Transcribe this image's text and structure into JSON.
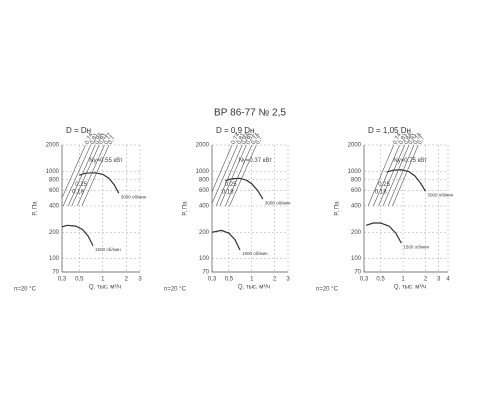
{
  "title": "ВР 86-77 № 2,5",
  "chart_data": [
    {
      "type": "line",
      "title": "D = Dн",
      "xlabel": "Q, тыс. м³/ч",
      "ylabel": "P, Па",
      "note": "n=20 °C",
      "log_x": true,
      "log_y": true,
      "grid": true,
      "xlim": [
        0.3,
        3
      ],
      "xticks": [
        {
          "value": 0.3,
          "label": "0,3"
        },
        {
          "value": 0.5,
          "label": "0,5"
        },
        1,
        2,
        3
      ],
      "ylim": [
        70,
        2000
      ],
      "yticks": [
        70,
        100,
        200,
        400,
        600,
        800,
        1000,
        2000
      ],
      "annotations": [
        "Ny=0.55 кВт",
        "0.25",
        "0.18"
      ],
      "series": [
        {
          "name": "3000 об/мин",
          "color": "#333333",
          "x": [
            0.5,
            0.6,
            0.8,
            1.0,
            1.2,
            1.4,
            1.6
          ],
          "values": [
            900,
            950,
            960,
            920,
            830,
            700,
            560
          ]
        },
        {
          "name": "1500 об/мин",
          "color": "#333333",
          "x": [
            0.3,
            0.35,
            0.45,
            0.55,
            0.65,
            0.75
          ],
          "values": [
            230,
            240,
            235,
            215,
            180,
            140
          ]
        },
        {
          "name": "0,74",
          "color": "#555555",
          "x": [
            0.27,
            0.6
          ],
          "values": [
            400,
            2000
          ]
        },
        {
          "name": "0,81",
          "color": "#555555",
          "x": [
            0.31,
            0.7
          ],
          "values": [
            400,
            2000
          ]
        },
        {
          "name": "0,84",
          "color": "#555555",
          "x": [
            0.36,
            0.8
          ],
          "values": [
            400,
            2000
          ]
        },
        {
          "name": "0,81",
          "color": "#555555",
          "x": [
            0.4,
            0.9
          ],
          "values": [
            400,
            2000
          ]
        },
        {
          "name": "0,77",
          "color": "#555555",
          "x": [
            0.47,
            1.05
          ],
          "values": [
            400,
            2000
          ]
        },
        {
          "name": "0,7",
          "color": "#555555",
          "x": [
            0.54,
            1.2
          ],
          "values": [
            400,
            2000
          ]
        }
      ]
    },
    {
      "type": "line",
      "title": "D = 0,9 Dн",
      "xlabel": "Q, тыс. м³/ч",
      "ylabel": "P, Па",
      "note": "n=20 °C",
      "log_x": true,
      "log_y": true,
      "grid": true,
      "xlim": [
        0.3,
        3
      ],
      "xticks": [
        {
          "value": 0.3,
          "label": "0,3"
        },
        {
          "value": 0.5,
          "label": "0,5"
        },
        1,
        2,
        3
      ],
      "ylim": [
        70,
        2000
      ],
      "yticks": [
        70,
        100,
        200,
        400,
        600,
        800,
        1000,
        2000
      ],
      "annotations": [
        "Ny=0.37 кВт",
        "0.25",
        "0.18"
      ],
      "series": [
        {
          "name": "3000 об/мин",
          "color": "#333333",
          "x": [
            0.45,
            0.55,
            0.7,
            0.85,
            1.0,
            1.2,
            1.4
          ],
          "values": [
            780,
            820,
            830,
            790,
            720,
            600,
            480
          ]
        },
        {
          "name": "1500 об/мин",
          "color": "#333333",
          "x": [
            0.3,
            0.4,
            0.5,
            0.6,
            0.7
          ],
          "values": [
            200,
            210,
            195,
            165,
            125
          ]
        },
        {
          "name": "0,74",
          "color": "#555555",
          "x": [
            0.25,
            0.55
          ],
          "values": [
            400,
            2000
          ]
        },
        {
          "name": "0,81",
          "color": "#555555",
          "x": [
            0.29,
            0.65
          ],
          "values": [
            400,
            2000
          ]
        },
        {
          "name": "0,84",
          "color": "#555555",
          "x": [
            0.34,
            0.75
          ],
          "values": [
            400,
            2000
          ]
        },
        {
          "name": "0,81",
          "color": "#555555",
          "x": [
            0.38,
            0.85
          ],
          "values": [
            400,
            2000
          ]
        },
        {
          "name": "0,74",
          "color": "#555555",
          "x": [
            0.45,
            1.0
          ],
          "values": [
            400,
            2000
          ]
        },
        {
          "name": "0,7",
          "color": "#555555",
          "x": [
            0.51,
            1.15
          ],
          "values": [
            400,
            2000
          ]
        }
      ]
    },
    {
      "type": "line",
      "title": "D = 1,05 Dн",
      "xlabel": "Q, тыс. м³/ч",
      "ylabel": "P, Па",
      "note": "n=20 °C",
      "log_x": true,
      "log_y": true,
      "grid": true,
      "xlim": [
        0.3,
        4
      ],
      "xticks": [
        {
          "value": 0.3,
          "label": "0,3"
        },
        {
          "value": 0.5,
          "label": "0,5"
        },
        1,
        2,
        3,
        4
      ],
      "ylim": [
        70,
        2000
      ],
      "yticks": [
        70,
        100,
        200,
        400,
        600,
        800,
        1000,
        2000
      ],
      "annotations": [
        "Ny=0.75 кВт",
        "0.25",
        "0.18"
      ],
      "series": [
        {
          "name": "3000 об/мин",
          "color": "#333333",
          "x": [
            0.6,
            0.75,
            0.95,
            1.2,
            1.45,
            1.7,
            2.0
          ],
          "values": [
            980,
            1030,
            1040,
            990,
            880,
            740,
            590
          ]
        },
        {
          "name": "1500 об/мин",
          "color": "#333333",
          "x": [
            0.32,
            0.4,
            0.5,
            0.65,
            0.8,
            0.95
          ],
          "values": [
            240,
            255,
            255,
            235,
            195,
            150
          ]
        },
        {
          "name": "0,74",
          "color": "#555555",
          "x": [
            0.34,
            0.75
          ],
          "values": [
            400,
            2000
          ]
        },
        {
          "name": "0,81",
          "color": "#555555",
          "x": [
            0.4,
            0.9
          ],
          "values": [
            400,
            2000
          ]
        },
        {
          "name": "0,84",
          "color": "#555555",
          "x": [
            0.47,
            1.05
          ],
          "values": [
            400,
            2000
          ]
        },
        {
          "name": "0,81",
          "color": "#555555",
          "x": [
            0.54,
            1.2
          ],
          "values": [
            400,
            2000
          ]
        },
        {
          "name": "0,74",
          "color": "#555555",
          "x": [
            0.63,
            1.4
          ],
          "values": [
            400,
            2000
          ]
        },
        {
          "name": "0,7",
          "color": "#555555",
          "x": [
            0.72,
            1.6
          ],
          "values": [
            400,
            2000
          ]
        }
      ]
    }
  ]
}
